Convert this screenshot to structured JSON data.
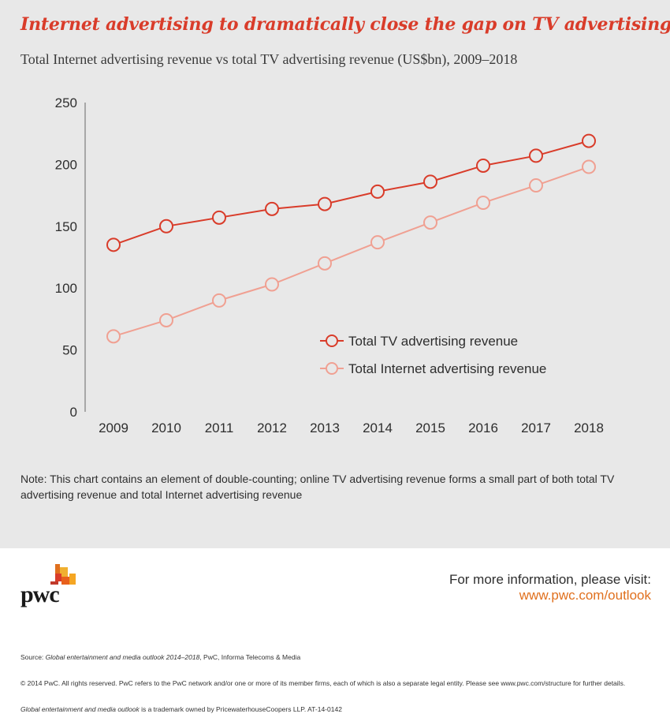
{
  "header": {
    "title": "Internet advertising to dramatically close the gap on TV advertising",
    "subtitle": "Total Internet advertising revenue vs total TV advertising revenue (US$bn), 2009–2018"
  },
  "chart_data": {
    "type": "line",
    "title": "Internet advertising to dramatically close the gap on TV advertising",
    "subtitle": "Total Internet advertising revenue vs total TV advertising revenue (US$bn), 2009–2018",
    "xlabel": "",
    "ylabel": "",
    "categories": [
      "2009",
      "2010",
      "2011",
      "2012",
      "2013",
      "2014",
      "2015",
      "2016",
      "2017",
      "2018"
    ],
    "ylim": [
      0,
      250
    ],
    "yticks": [
      0,
      50,
      100,
      150,
      200,
      250
    ],
    "grid": false,
    "legend_position": "center-right",
    "series": [
      {
        "name": "Total TV advertising revenue",
        "color": "#d93c2a",
        "marker": "open-circle",
        "values": [
          135,
          150,
          157,
          164,
          168,
          178,
          186,
          199,
          207,
          219
        ]
      },
      {
        "name": "Total Internet advertising revenue",
        "color": "#f0a092",
        "marker": "open-circle",
        "values": [
          61,
          74,
          90,
          103,
          120,
          137,
          153,
          169,
          183,
          198
        ]
      }
    ]
  },
  "note": "Note: This chart contains an element of double-counting; online TV advertising revenue forms a small part of both total TV advertising revenue and total Internet advertising revenue",
  "footer": {
    "logo_text": "pwc",
    "info_label": "For more information, please visit:",
    "info_link": "www.pwc.com/outlook",
    "source_prefix": "Source: ",
    "source_title": "Global entertainment and media outlook 2014–2018",
    "source_suffix": ", PwC, Informa Telecoms & Media",
    "copyright": "© 2014 PwC. All rights reserved. PwC refers to the PwC network and/or one or more of its member firms, each of which is also a separate legal entity. Please see www.pwc.com/structure for further details.",
    "trademark_title": "Global entertainment and media outlook",
    "trademark_suffix": " is a trademark owned by PricewaterhouseCoopers LLP. AT-14-0142"
  }
}
